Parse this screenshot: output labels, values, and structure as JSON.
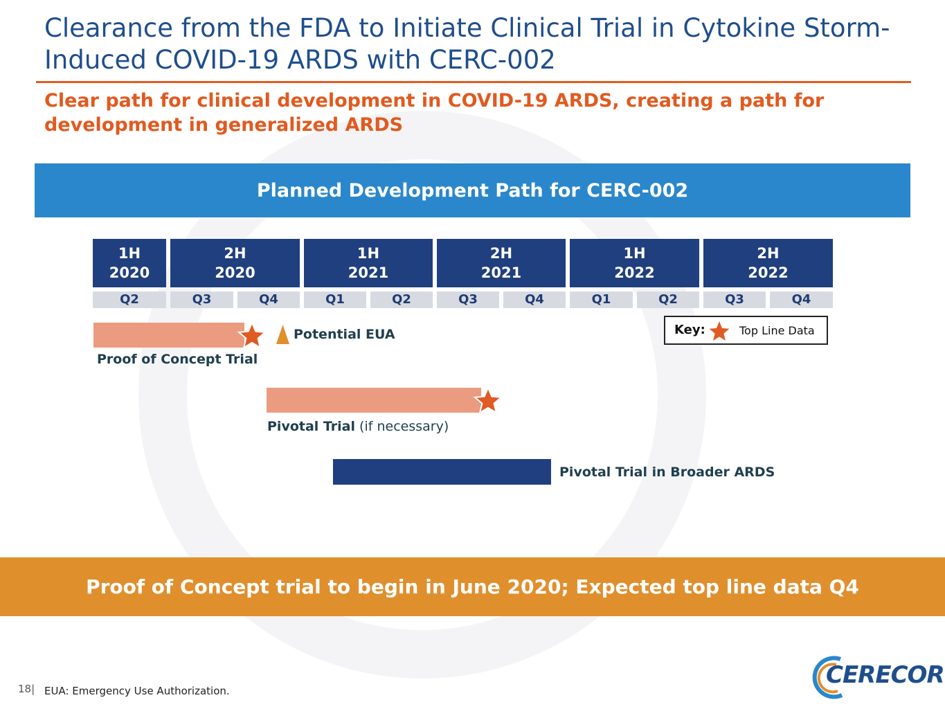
{
  "title": "Clearance from the FDA to Initiate Clinical Trial in Cytokine Storm-Induced COVID-19 ARDS with CERC-002",
  "subtitle": "Clear path for clinical development in COVID-19 ARDS, creating a path for development in generalized ARDS",
  "banner": "Planned Development Path for CERC-002",
  "timeline": {
    "halves": [
      {
        "h": "1H",
        "year": "2020"
      },
      {
        "h": "2H",
        "year": "2020"
      },
      {
        "h": "1H",
        "year": "2021"
      },
      {
        "h": "2H",
        "year": "2021"
      },
      {
        "h": "1H",
        "year": "2022"
      },
      {
        "h": "2H",
        "year": "2022"
      }
    ],
    "quarters": [
      "Q2",
      "Q3",
      "Q4",
      "Q1",
      "Q2",
      "Q3",
      "Q4",
      "Q1",
      "Q2",
      "Q3",
      "Q4"
    ]
  },
  "trials": {
    "poc_label": "Proof of Concept Trial",
    "eua_label": "Potential EUA",
    "pivotal_bold": "Pivotal Trial",
    "pivotal_rest": " (if necessary)",
    "broad_label": "Pivotal Trial in Broader ARDS"
  },
  "key": {
    "label": "Key:",
    "item": "Top Line Data"
  },
  "callout": "Proof of Concept trial to begin in June 2020; Expected top line data Q4",
  "footer": {
    "page": "18|",
    "note": "EUA: Emergency Use Authorization.",
    "logo": "CERECOR"
  },
  "colors": {
    "navy": "#203f7e",
    "blue": "#2a87cb",
    "orange": "#e15a1f",
    "salmon": "#eb9b80",
    "amber": "#e08f2d"
  }
}
